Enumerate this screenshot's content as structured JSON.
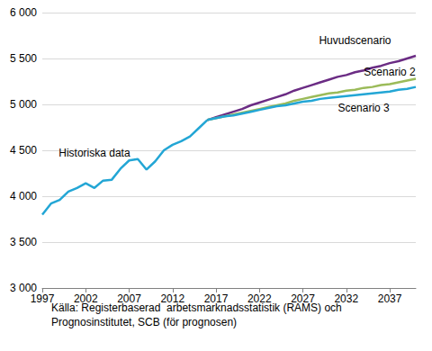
{
  "chart_data": {
    "type": "line",
    "x": [
      1997,
      1998,
      1999,
      2000,
      2001,
      2002,
      2003,
      2004,
      2005,
      2006,
      2007,
      2008,
      2009,
      2010,
      2011,
      2012,
      2013,
      2014,
      2015,
      2016,
      2017,
      2018,
      2019,
      2020,
      2021,
      2022,
      2023,
      2024,
      2025,
      2026,
      2027,
      2028,
      2029,
      2030,
      2031,
      2032,
      2033,
      2034,
      2035,
      2036,
      2037,
      2038,
      2039,
      2040
    ],
    "series": [
      {
        "name": "Historiska data",
        "color": "#23a6d5",
        "values": [
          3800,
          3920,
          3960,
          4050,
          4090,
          4140,
          4090,
          4170,
          4180,
          4300,
          4390,
          4405,
          4290,
          4380,
          4500,
          4560,
          4600,
          4650,
          4740,
          4830,
          null,
          null,
          null,
          null,
          null,
          null,
          null,
          null,
          null,
          null,
          null,
          null,
          null,
          null,
          null,
          null,
          null,
          null,
          null,
          null,
          null,
          null,
          null,
          null
        ]
      },
      {
        "name": "Huvudscenario",
        "color": "#6b2c84",
        "values": [
          null,
          null,
          null,
          null,
          null,
          null,
          null,
          null,
          null,
          null,
          null,
          null,
          null,
          null,
          null,
          null,
          null,
          null,
          null,
          4830,
          4860,
          4890,
          4920,
          4950,
          4990,
          5020,
          5050,
          5080,
          5110,
          5150,
          5180,
          5210,
          5240,
          5270,
          5300,
          5320,
          5350,
          5370,
          5400,
          5420,
          5450,
          5470,
          5500,
          5530
        ]
      },
      {
        "name": "Scenario 2",
        "color": "#9bbb59",
        "values": [
          null,
          null,
          null,
          null,
          null,
          null,
          null,
          null,
          null,
          null,
          null,
          null,
          null,
          null,
          null,
          null,
          null,
          null,
          null,
          4830,
          4850,
          4870,
          4890,
          4910,
          4930,
          4950,
          4970,
          4990,
          5010,
          5040,
          5060,
          5080,
          5100,
          5120,
          5130,
          5150,
          5160,
          5180,
          5190,
          5210,
          5220,
          5240,
          5260,
          5280
        ]
      },
      {
        "name": "Scenario 3",
        "color": "#23a6d5",
        "values": [
          null,
          null,
          null,
          null,
          null,
          null,
          null,
          null,
          null,
          null,
          null,
          null,
          null,
          null,
          null,
          null,
          null,
          null,
          null,
          4830,
          4850,
          4870,
          4880,
          4900,
          4920,
          4940,
          4960,
          4980,
          4990,
          5010,
          5030,
          5040,
          5060,
          5070,
          5080,
          5090,
          5100,
          5110,
          5120,
          5130,
          5140,
          5160,
          5170,
          5190
        ]
      }
    ],
    "xlim": [
      1997,
      2040
    ],
    "xticks": [
      1997,
      2002,
      2007,
      2012,
      2017,
      2022,
      2027,
      2032,
      2037
    ],
    "ylim": [
      3000,
      6000
    ],
    "yticks": [
      {
        "value": 3000,
        "label": "3 000"
      },
      {
        "value": 3500,
        "label": "3 500"
      },
      {
        "value": 4000,
        "label": "4 000"
      },
      {
        "value": 4500,
        "label": "4 500"
      },
      {
        "value": 5000,
        "label": "5 000"
      },
      {
        "value": 5500,
        "label": "5 500"
      },
      {
        "value": 6000,
        "label": "6 000"
      }
    ],
    "grid": "y",
    "caption": [
      "Källa: Registerbaserad  arbetsmarknadsstatistik (RAMS) och",
      "Prognosinstitutet, SCB (för prognosen)"
    ]
  }
}
